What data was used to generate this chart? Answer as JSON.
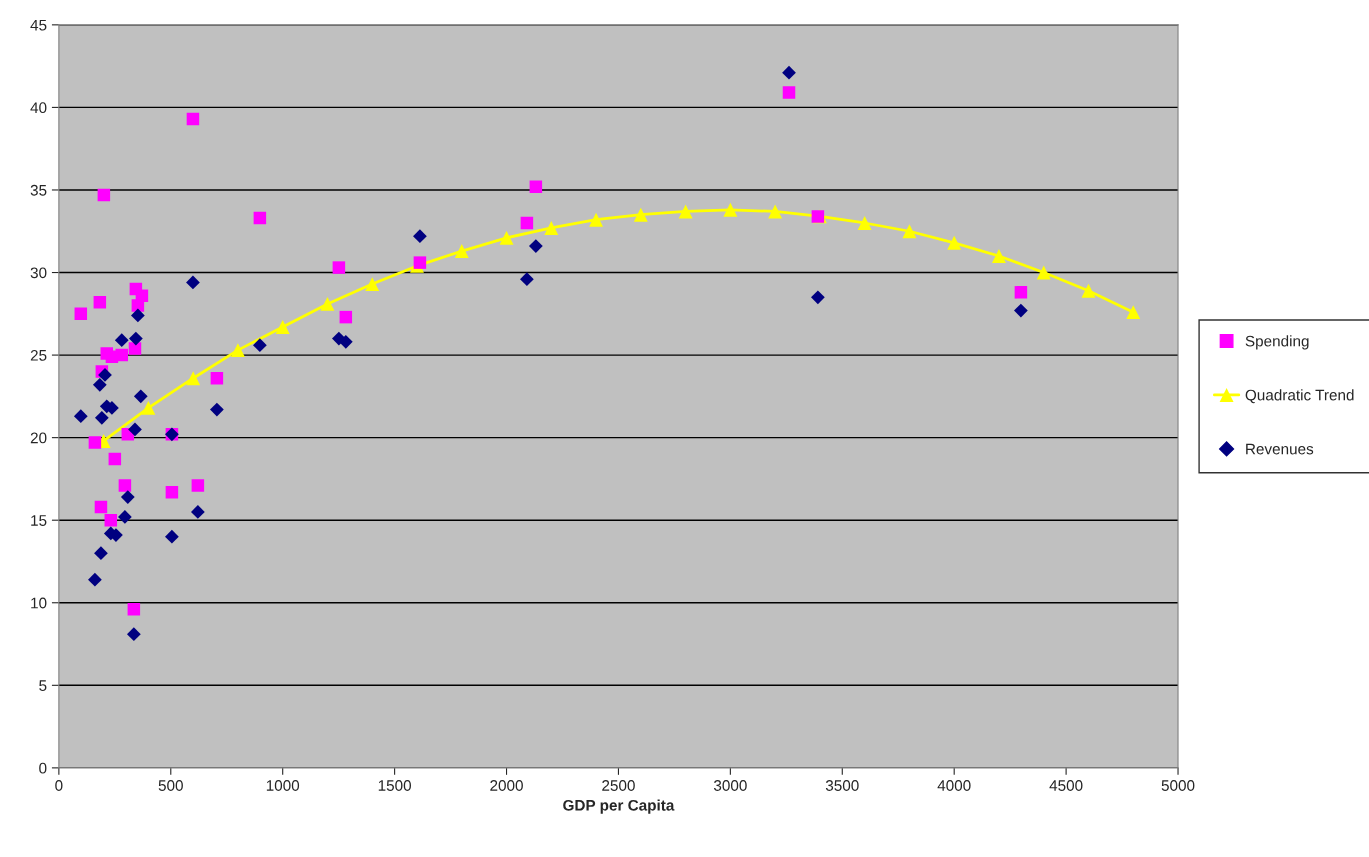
{
  "chart_data": {
    "type": "scatter",
    "xlabel": "GDP per Capita",
    "xlim": [
      0,
      5000
    ],
    "xticks": [
      0,
      500,
      1000,
      1500,
      2000,
      2500,
      3000,
      3500,
      4000,
      4500,
      5000
    ],
    "ylim": [
      0,
      45
    ],
    "yticks": [
      0,
      5,
      10,
      15,
      20,
      25,
      30,
      35,
      40,
      45
    ],
    "grid": "y",
    "legend": "right",
    "series": [
      {
        "name": "Spending",
        "marker": "square",
        "color": "#ff00ff",
        "x": [
          98,
          183,
          161,
          188,
          192,
          214,
          237,
          281,
          232,
          250,
          295,
          308,
          335,
          344,
          371,
          353,
          340,
          201,
          505,
          505,
          621,
          706,
          599,
          898,
          1251,
          1282,
          1613,
          2091,
          2131,
          3262,
          3391,
          4298
        ],
        "values": [
          27.5,
          28.2,
          19.7,
          15.8,
          24.0,
          25.1,
          24.9,
          25.0,
          15.0,
          18.7,
          17.1,
          20.2,
          9.6,
          29.0,
          28.6,
          28.0,
          25.4,
          34.7,
          20.2,
          16.7,
          17.1,
          23.6,
          39.3,
          33.3,
          30.3,
          27.3,
          30.6,
          33.0,
          35.2,
          40.9,
          33.4,
          28.8
        ]
      },
      {
        "name": "Quadratic Trend",
        "type": "line",
        "marker": "triangle",
        "line_style": "solid",
        "color": "#ffff00",
        "x": [
          200,
          400,
          600,
          800,
          1000,
          1200,
          1400,
          1600,
          1800,
          2000,
          2200,
          2400,
          2600,
          2800,
          3000,
          3200,
          3400,
          3600,
          3800,
          4000,
          4200,
          4400,
          4600,
          4800
        ],
        "values": [
          19.8,
          21.8,
          23.6,
          25.3,
          26.7,
          28.1,
          29.3,
          30.4,
          31.3,
          32.1,
          32.7,
          33.2,
          33.5,
          33.7,
          33.8,
          33.7,
          33.4,
          33.0,
          32.5,
          31.8,
          31.0,
          30.0,
          28.9,
          27.6
        ]
      },
      {
        "name": "Revenues",
        "marker": "diamond",
        "color": "#000080",
        "x": [
          599,
          353,
          281,
          344,
          206,
          183,
          366,
          214,
          237,
          98,
          192,
          706,
          340,
          505,
          308,
          295,
          621,
          232,
          255,
          505,
          188,
          161,
          335,
          898,
          1251,
          1282,
          1613,
          2091,
          2131,
          3262,
          3391,
          4298
        ],
        "values": [
          29.4,
          27.4,
          25.9,
          26.0,
          23.8,
          23.2,
          22.5,
          21.9,
          21.8,
          21.3,
          21.2,
          21.7,
          20.5,
          20.2,
          16.4,
          15.2,
          15.5,
          14.2,
          14.1,
          14.0,
          13.0,
          11.4,
          8.1,
          25.6,
          26.0,
          25.8,
          32.2,
          29.6,
          31.6,
          42.1,
          28.5,
          27.7
        ]
      }
    ]
  }
}
